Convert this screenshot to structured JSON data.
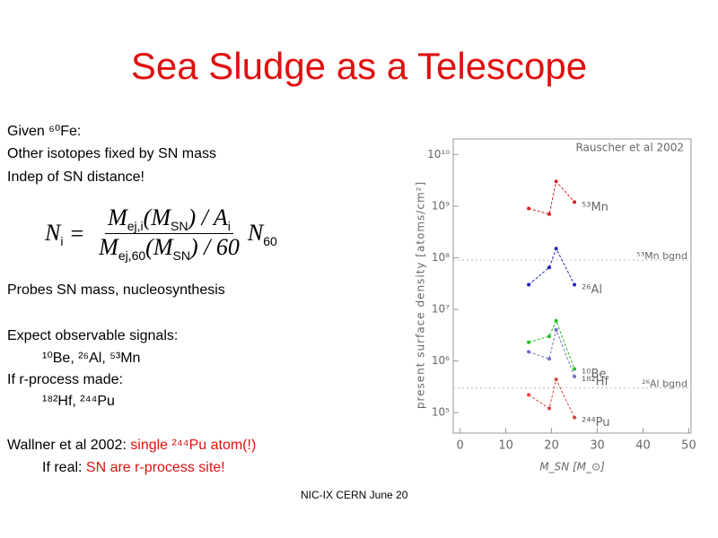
{
  "title": "Sea Sludge as a Telescope",
  "text": {
    "given": "Given ⁶⁰Fe:",
    "line2": "Other isotopes fixed by SN mass",
    "line3": "Indep of SN distance!",
    "probes": "Probes SN mass, nucleosynthesis",
    "expect": "Expect observable signals:",
    "isotopes1": "¹⁰Be, ²⁶Al, ⁵³Mn",
    "rprocess": "If r-process made:",
    "isotopes2": "¹⁸²Hf, ²⁴⁴Pu",
    "wallner": "Wallner et al 2002:  ",
    "wallner_red": "single ²⁴⁴Pu atom(!)",
    "ifreal": "If real:  ",
    "ifreal_red": "SN are r-process site!"
  },
  "equation": {
    "lhs": [
      "N",
      "i"
    ],
    "eq": "=",
    "num": [
      "M",
      "ej,i",
      "(M",
      "SN",
      ") / A",
      "i"
    ],
    "den": [
      "M",
      "ej,60",
      "(M",
      "SN",
      ") / 60"
    ],
    "rhs": [
      "N",
      "60"
    ]
  },
  "footer": "NIC-IX CERN June 20",
  "plot": {
    "type": "scatter",
    "title": "Rauscher et al 2002",
    "xlabel": "M_SN [M_⊙]",
    "ylabel": "present surface density [atoms/cm²]",
    "xlim": [
      -1.5,
      50.5
    ],
    "xticks": [
      0,
      10,
      20,
      30,
      40,
      50
    ],
    "ylim": [
      40000,
      20000000000
    ],
    "log_y": true,
    "yticks": [
      {
        "value": 100000,
        "label": "10⁵"
      },
      {
        "value": 1000000,
        "label": "10⁶"
      },
      {
        "value": 10000000,
        "label": "10⁷"
      },
      {
        "value": 100000000,
        "label": "10⁸"
      },
      {
        "value": 1000000000,
        "label": "10⁹"
      },
      {
        "value": 10000000000,
        "label": "10¹⁰"
      }
    ],
    "x": [
      15,
      19.5,
      21,
      25
    ],
    "series": [
      {
        "name": "⁵³Mn",
        "color": "#d42020",
        "values": [
          900000000,
          700000000,
          3000000000,
          1200000000
        ]
      },
      {
        "name": "²⁶Al",
        "color": "#2020c0",
        "values": [
          30000000,
          65000000,
          150000000,
          30000000
        ]
      },
      {
        "name": "¹⁰Be",
        "color": "#20c020",
        "values": [
          2300000,
          3000000,
          6000000,
          700000
        ]
      },
      {
        "name": "¹⁸²Hf",
        "color": "#7070c8",
        "values": [
          1500000,
          1100000,
          4000000,
          500000
        ]
      },
      {
        "name": "²⁴⁴Pu",
        "color": "#e04040",
        "values": [
          220000,
          120000,
          440000,
          80000
        ]
      }
    ],
    "backgrounds": [
      {
        "name": "⁵³Mn bgnd",
        "value": 90000000
      },
      {
        "name": "²⁶Al bgnd",
        "value": 300000
      }
    ]
  }
}
